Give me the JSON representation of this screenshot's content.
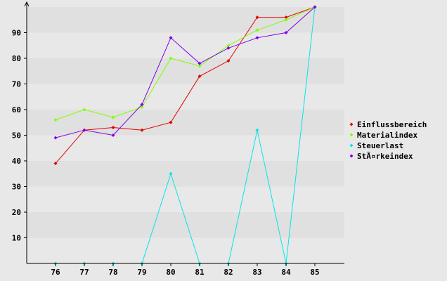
{
  "chart_data": {
    "type": "line",
    "x": [
      "76",
      "77",
      "78",
      "79",
      "80",
      "81",
      "82",
      "83",
      "84",
      "85"
    ],
    "ylim": [
      0,
      100
    ],
    "yticks": [
      10,
      20,
      30,
      40,
      50,
      60,
      70,
      80,
      90
    ],
    "grid": "horizontal bands",
    "legend_position": "right",
    "series": [
      {
        "name": "Einflussbereich",
        "color": "#e60000",
        "values": [
          39,
          52,
          53,
          52,
          55,
          73,
          79,
          96,
          96,
          100
        ]
      },
      {
        "name": "Materialindex",
        "color": "#80ff00",
        "values": [
          56,
          60,
          57,
          61,
          80,
          77,
          85,
          91,
          95,
          100
        ]
      },
      {
        "name": "Steuerlast",
        "color": "#00e6e6",
        "values": [
          0,
          0,
          0,
          0,
          35,
          0,
          0,
          52,
          0,
          100
        ]
      },
      {
        "name": "StÃ¤rkeindex",
        "color": "#8000e6",
        "values": [
          49,
          52,
          50,
          62,
          88,
          78,
          84,
          88,
          90,
          100
        ]
      }
    ]
  }
}
